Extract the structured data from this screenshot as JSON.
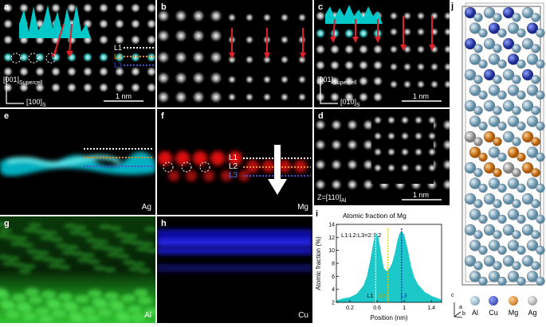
{
  "panels": {
    "a": {
      "label": "a",
      "l1": "L1",
      "l2": "L2",
      "l3": "L3",
      "axis_v": "[001]",
      "axis_v_sub": "Supercell",
      "axis_h": "[100]",
      "axis_h_sub": "S",
      "scale": "1 nm"
    },
    "b": {
      "label": "b"
    },
    "c": {
      "label": "c",
      "axis_v": "[001]",
      "axis_v_sub": "Supercell",
      "axis_h": "[010]",
      "axis_h_sub": "S",
      "scale": "1 nm"
    },
    "d": {
      "label": "d",
      "zone": "Z=[110]",
      "zone_sub": "Al",
      "scale": "1 nm"
    },
    "e": {
      "label": "e",
      "element": "Ag"
    },
    "f": {
      "label": "f",
      "element": "Mg",
      "l1": "L1",
      "l2": "L2",
      "l3": "L3"
    },
    "g": {
      "label": "g",
      "element": "Al"
    },
    "h": {
      "label": "h",
      "element": "Cu"
    },
    "j": {
      "label": "j"
    }
  },
  "legend": {
    "al": "Al",
    "cu": "Cu",
    "mg": "Mg",
    "ag": "Ag",
    "axis_c": "c",
    "axis_a": "a",
    "axis_b": "b"
  },
  "colors": {
    "al": "#8fb4c8",
    "cu": "#2d48b8",
    "mg": "#e07a1f",
    "ag": "#a9a9a9",
    "cyan": "#00c8c8"
  },
  "chart_data": {
    "type": "area",
    "panel_label": "i",
    "title": "Atomic fraction of Mg",
    "annotation": "L1:L2:L3=2:1:2",
    "xlabel": "Position (nm)",
    "ylabel": "Atomic fraction (%)",
    "xlim": [
      0.0,
      1.55
    ],
    "ylim": [
      2,
      14
    ],
    "xticks": [
      0.2,
      0.6,
      1.0,
      1.4
    ],
    "yticks": [
      2,
      4,
      6,
      8,
      10,
      12,
      14
    ],
    "x": [
      0.0,
      0.1,
      0.2,
      0.3,
      0.4,
      0.45,
      0.5,
      0.55,
      0.58,
      0.62,
      0.66,
      0.7,
      0.74,
      0.78,
      0.82,
      0.86,
      0.9,
      0.93,
      0.96,
      1.0,
      1.05,
      1.1,
      1.15,
      1.2,
      1.3,
      1.4,
      1.5,
      1.55
    ],
    "y": [
      2.3,
      2.6,
      2.8,
      3.3,
      4.6,
      6.0,
      8.5,
      11.5,
      12.8,
      12.0,
      9.5,
      7.2,
      6.8,
      7.2,
      8.0,
      9.5,
      11.5,
      12.6,
      13.0,
      12.4,
      10.2,
      7.6,
      5.8,
      4.8,
      3.6,
      3.0,
      2.6,
      2.4
    ],
    "markers": [
      {
        "label": "L1",
        "x": 0.58
      },
      {
        "label": "L2",
        "x": 0.76
      },
      {
        "label": "L3",
        "x": 0.96
      }
    ]
  }
}
